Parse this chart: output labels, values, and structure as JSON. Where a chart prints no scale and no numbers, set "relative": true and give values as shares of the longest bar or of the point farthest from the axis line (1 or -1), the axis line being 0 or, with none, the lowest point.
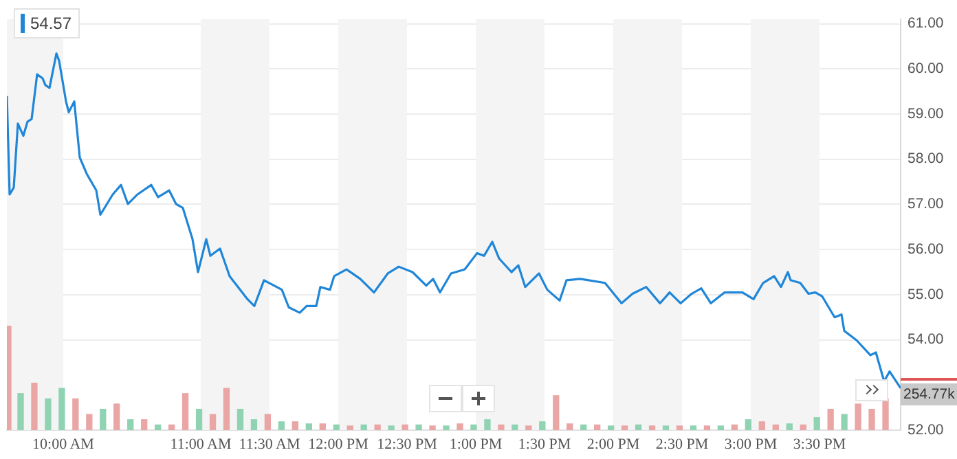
{
  "chart_data": [
    {
      "type": "line",
      "annotations": [
        "54.57",
        "254.77k"
      ],
      "xlim": [
        9.59,
        16.09
      ],
      "xticks": [
        {
          "value": 10,
          "label": "10:00 AM"
        },
        {
          "value": 11,
          "label": "11:00 AM"
        },
        {
          "value": 11.5,
          "label": "11:30 AM"
        },
        {
          "value": 12,
          "label": "12:00 PM"
        },
        {
          "value": 12.5,
          "label": "12:30 PM"
        },
        {
          "value": 13,
          "label": "1:00 PM"
        },
        {
          "value": 13.5,
          "label": "1:30 PM"
        },
        {
          "value": 14,
          "label": "2:00 PM"
        },
        {
          "value": 14.5,
          "label": "2:30 PM"
        },
        {
          "value": 15,
          "label": "3:00 PM"
        },
        {
          "value": 15.5,
          "label": "3:30 PM"
        }
      ],
      "ylim": [
        52,
        61.1
      ],
      "yticks": [
        {
          "value": 52,
          "label": "52.00"
        },
        {
          "value": 54,
          "label": "54.00"
        },
        {
          "value": 55,
          "label": "55.00"
        },
        {
          "value": 56,
          "label": "56.00"
        },
        {
          "value": 57,
          "label": "57.00"
        },
        {
          "value": 58,
          "label": "58.00"
        },
        {
          "value": 59,
          "label": "59.00"
        },
        {
          "value": 60,
          "label": "60.00"
        },
        {
          "value": 61,
          "label": "61.00"
        }
      ],
      "grid": "y",
      "bands": [
        {
          "axis": "x",
          "from": 9.59,
          "to": 10,
          "color": "#f4f4f4"
        },
        {
          "axis": "x",
          "from": 11,
          "to": 11.5,
          "color": "#f4f4f4"
        },
        {
          "axis": "x",
          "from": 12,
          "to": 12.5,
          "color": "#f4f4f4"
        },
        {
          "axis": "x",
          "from": 13,
          "to": 13.5,
          "color": "#f4f4f4"
        },
        {
          "axis": "x",
          "from": 14,
          "to": 14.5,
          "color": "#f4f4f4"
        },
        {
          "axis": "x",
          "from": 15,
          "to": 15.5,
          "color": "#f4f4f4"
        }
      ],
      "series": [
        {
          "color": "#1f86d8",
          "x": [
            9.59,
            9.61,
            9.64,
            9.67,
            9.71,
            9.74,
            9.77,
            9.81,
            9.85,
            9.87,
            9.9,
            9.95,
            9.97,
            10.02,
            10.04,
            10.08,
            10.12,
            10.17,
            10.24,
            10.27,
            10.36,
            10.42,
            10.47,
            10.54,
            10.64,
            10.69,
            10.77,
            10.82,
            10.87,
            10.94,
            10.98,
            11.04,
            11.07,
            11.14,
            11.21,
            11.34,
            11.39,
            11.46,
            11.59,
            11.64,
            11.72,
            11.77,
            11.84,
            11.87,
            11.94,
            11.97,
            12.06,
            12.16,
            12.26,
            12.36,
            12.44,
            12.54,
            12.64,
            12.69,
            12.74,
            12.82,
            12.92,
            13.01,
            13.06,
            13.12,
            13.17,
            13.26,
            13.31,
            13.36,
            13.46,
            13.52,
            13.61,
            13.66,
            13.76,
            13.94,
            14.06,
            14.14,
            14.24,
            14.34,
            14.41,
            14.49,
            14.57,
            14.64,
            14.71,
            14.81,
            14.94,
            15.02,
            15.09,
            15.17,
            15.22,
            15.27,
            15.29,
            15.36,
            15.42,
            15.47,
            15.52,
            15.61,
            15.66,
            15.68,
            15.77,
            15.87,
            15.91,
            15.97,
            16.01,
            16.09
          ],
          "values": [
            59.4,
            57.22,
            57.37,
            58.79,
            58.52,
            58.83,
            58.89,
            59.88,
            59.79,
            59.64,
            59.58,
            60.34,
            60.18,
            59.28,
            59.04,
            59.28,
            58.04,
            57.68,
            57.31,
            56.77,
            57.22,
            57.43,
            57.01,
            57.22,
            57.43,
            57.16,
            57.31,
            57.01,
            56.92,
            56.23,
            55.5,
            56.23,
            55.86,
            56.02,
            55.41,
            54.9,
            54.75,
            55.32,
            55.11,
            54.72,
            54.6,
            54.75,
            54.75,
            55.17,
            55.11,
            55.41,
            55.56,
            55.35,
            55.05,
            55.47,
            55.62,
            55.5,
            55.2,
            55.35,
            55.05,
            55.47,
            55.56,
            55.92,
            55.86,
            56.17,
            55.8,
            55.5,
            55.65,
            55.17,
            55.47,
            55.11,
            54.87,
            55.32,
            55.35,
            55.26,
            54.81,
            55.02,
            55.17,
            54.81,
            55.05,
            54.81,
            55.02,
            55.14,
            54.81,
            55.05,
            55.05,
            54.9,
            55.26,
            55.41,
            55.17,
            55.5,
            55.32,
            55.26,
            55.02,
            55.05,
            54.96,
            54.5,
            54.56,
            54.2,
            53.99,
            53.66,
            53.72,
            53.08,
            53.3,
            52.93
          ]
        }
      ]
    },
    {
      "type": "bar",
      "relative": true,
      "tick_labels": false,
      "xlim": [
        9.59,
        16.09
      ],
      "x": [
        9.6,
        9.69,
        9.79,
        9.89,
        9.99,
        10.09,
        10.19,
        10.29,
        10.39,
        10.49,
        10.59,
        10.69,
        10.79,
        10.89,
        10.99,
        11.09,
        11.19,
        11.29,
        11.39,
        11.49,
        11.59,
        11.69,
        11.79,
        11.89,
        11.99,
        12.09,
        12.19,
        12.29,
        12.39,
        12.49,
        12.59,
        12.69,
        12.79,
        12.89,
        12.99,
        13.09,
        13.19,
        13.29,
        13.39,
        13.49,
        13.59,
        13.69,
        13.79,
        13.89,
        13.99,
        14.09,
        14.19,
        14.29,
        14.39,
        14.49,
        14.59,
        14.69,
        14.79,
        14.89,
        14.99,
        15.09,
        15.19,
        15.29,
        15.39,
        15.49,
        15.59,
        15.69,
        15.79,
        15.89,
        15.99
      ],
      "values": [
        1,
        0.35,
        0.45,
        0.3,
        0.4,
        0.3,
        0.15,
        0.2,
        0.25,
        0.1,
        0.1,
        0.05,
        0.05,
        0.35,
        0.2,
        0.15,
        0.4,
        0.2,
        0.1,
        0.15,
        0.08,
        0.08,
        0.06,
        0.06,
        0.05,
        0.04,
        0.05,
        0.05,
        0.04,
        0.05,
        0.05,
        0.04,
        0.04,
        0.06,
        0.05,
        0.1,
        0.05,
        0.05,
        0.04,
        0.08,
        0.33,
        0.06,
        0.05,
        0.05,
        0.04,
        0.04,
        0.05,
        0.04,
        0.04,
        0.04,
        0.04,
        0.04,
        0.04,
        0.05,
        0.1,
        0.08,
        0.05,
        0.06,
        0.05,
        0.12,
        0.2,
        0.15,
        0.25,
        0.2,
        0.3
      ],
      "colors": [
        "#eaa5a5",
        "#8fd3b3",
        "#eaa5a5",
        "#8fd3b3",
        "#8fd3b3",
        "#eaa5a5",
        "#eaa5a5",
        "#8fd3b3",
        "#eaa5a5",
        "#8fd3b3",
        "#eaa5a5",
        "#8fd3b3",
        "#eaa5a5",
        "#eaa5a5",
        "#8fd3b3",
        "#eaa5a5",
        "#eaa5a5",
        "#8fd3b3",
        "#8fd3b3",
        "#eaa5a5",
        "#8fd3b3",
        "#eaa5a5",
        "#8fd3b3",
        "#eaa5a5",
        "#8fd3b3",
        "#eaa5a5",
        "#8fd3b3",
        "#eaa5a5",
        "#8fd3b3",
        "#eaa5a5",
        "#8fd3b3",
        "#eaa5a5",
        "#8fd3b3",
        "#eaa5a5",
        "#8fd3b3",
        "#8fd3b3",
        "#eaa5a5",
        "#8fd3b3",
        "#eaa5a5",
        "#8fd3b3",
        "#eaa5a5",
        "#eaa5a5",
        "#8fd3b3",
        "#eaa5a5",
        "#8fd3b3",
        "#eaa5a5",
        "#8fd3b3",
        "#eaa5a5",
        "#8fd3b3",
        "#eaa5a5",
        "#8fd3b3",
        "#eaa5a5",
        "#8fd3b3",
        "#eaa5a5",
        "#8fd3b3",
        "#eaa5a5",
        "#eaa5a5",
        "#8fd3b3",
        "#eaa5a5",
        "#8fd3b3",
        "#eaa5a5",
        "#8fd3b3",
        "#eaa5a5",
        "#eaa5a5",
        "#eaa5a5"
      ]
    }
  ]
}
